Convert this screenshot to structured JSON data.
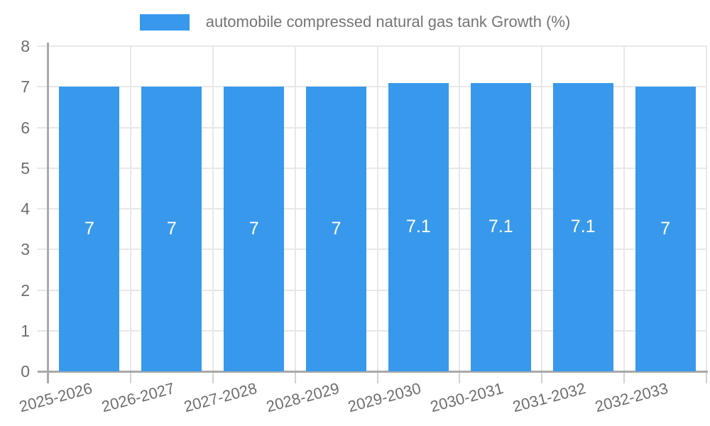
{
  "chart_data": {
    "type": "bar",
    "title": "",
    "legend_entries": [
      "automobile compressed natural gas tank Growth (%)"
    ],
    "legend_position": "top",
    "categories": [
      "2025-2026",
      "2026-2027",
      "2027-2028",
      "2028-2029",
      "2029-2030",
      "2030-2031",
      "2031-2032",
      "2032-2033"
    ],
    "values": [
      7,
      7,
      7,
      7,
      7.1,
      7.1,
      7.1,
      7
    ],
    "value_labels": [
      "7",
      "7",
      "7",
      "7",
      "7.1",
      "7.1",
      "7.1",
      "7"
    ],
    "xlabel": "",
    "ylabel": "",
    "ylim": [
      0,
      8
    ],
    "y_ticks": [
      0,
      1,
      2,
      3,
      4,
      5,
      6,
      7,
      8
    ],
    "grid": true,
    "colors": {
      "bar": "#3899ec",
      "grid": "#e8e8e8",
      "axis": "#a9a9a9",
      "tick": "#d2d2d2",
      "axis_label": "#6e6e6e",
      "value_label": "#ffffff",
      "legend_text": "#757575",
      "background": "#ffffff"
    }
  }
}
